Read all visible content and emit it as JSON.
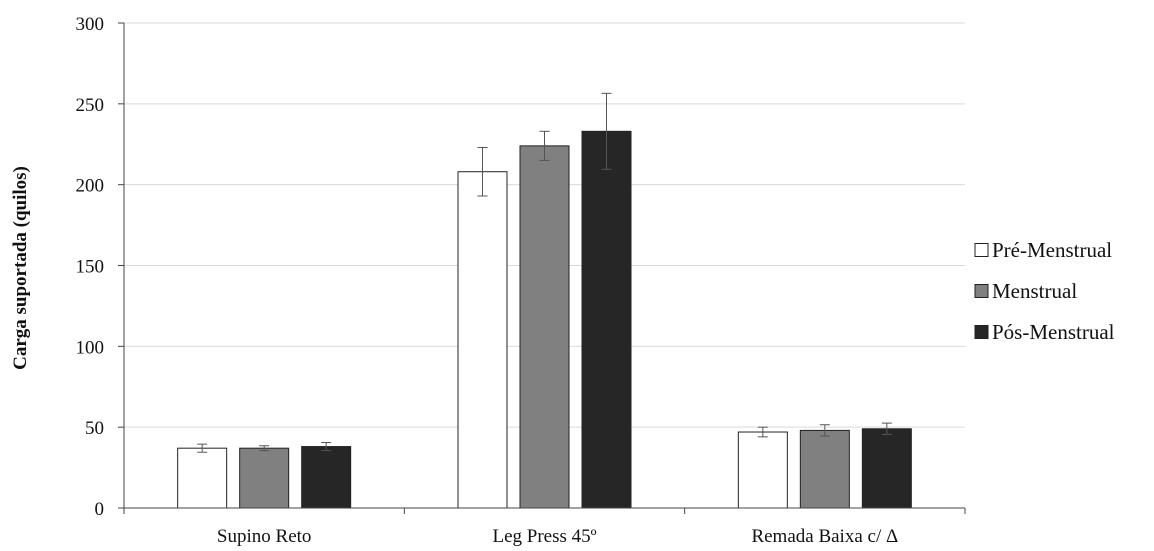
{
  "chart_data": {
    "type": "bar",
    "title": "",
    "xlabel": "",
    "ylabel": "Carga suportada (quilos)",
    "ylim": [
      0,
      300
    ],
    "yticks": [
      0,
      50,
      100,
      150,
      200,
      250,
      300
    ],
    "grid": true,
    "legend_position": "right",
    "categories": [
      "Supino Reto",
      "Leg Press 45º",
      "Remada Baixa c/ Δ"
    ],
    "series": [
      {
        "name": "Pré-Menstrual",
        "color": "#ffffff",
        "values": [
          37,
          208,
          47
        ],
        "errors": [
          2.5,
          15,
          3
        ]
      },
      {
        "name": "Menstrual",
        "color": "#808080",
        "values": [
          37,
          224,
          48
        ],
        "errors": [
          1.5,
          9,
          3.5
        ]
      },
      {
        "name": "Pós-Menstrual",
        "color": "#262626",
        "values": [
          38,
          233,
          49
        ],
        "errors": [
          2.5,
          23.5,
          3.5
        ]
      }
    ]
  }
}
